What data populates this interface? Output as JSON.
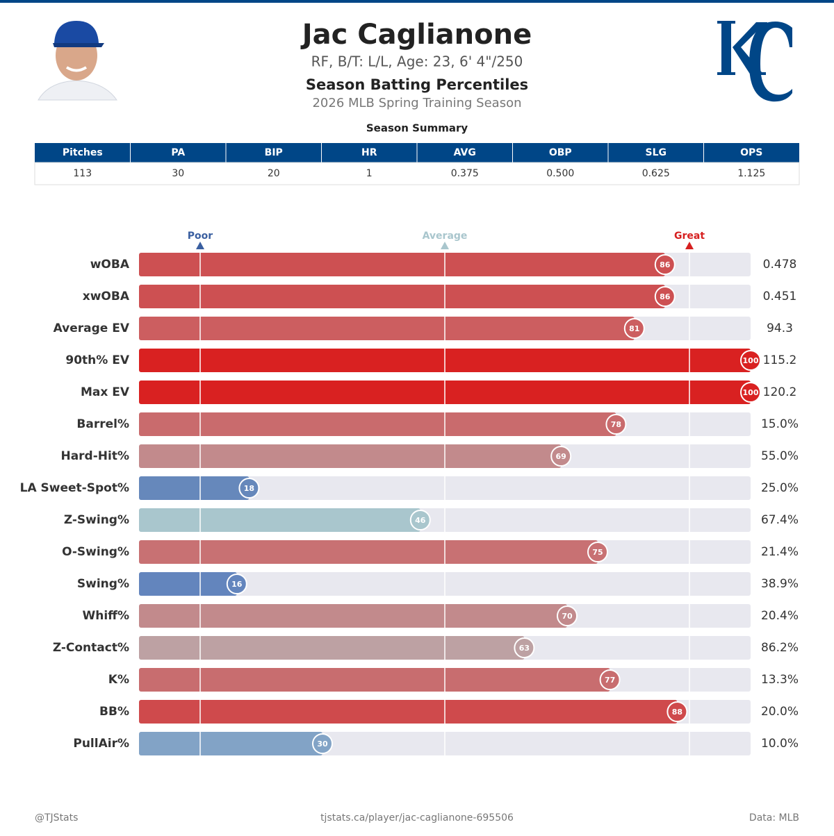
{
  "header": {
    "title": "Jac Caglianone",
    "subtitle": "RF, B/T: L/L, Age: 23, 6' 4\"/250",
    "heading": "Season Batting Percentiles",
    "season": "2026 MLB Spring Training Season"
  },
  "table": {
    "title": "Season Summary",
    "columns": [
      "Pitches",
      "PA",
      "BIP",
      "HR",
      "AVG",
      "OBP",
      "SLG",
      "OPS"
    ],
    "rows": [
      [
        "113",
        "30",
        "20",
        "1",
        "0.375",
        "0.500",
        "0.625",
        "1.125"
      ]
    ]
  },
  "chart_data": {
    "type": "percentile",
    "categories": [
      "wOBA",
      "xwOBA",
      "Average EV",
      "90th% EV",
      "Max EV",
      "Barrel%",
      "Hard-Hit%",
      "LA Sweet-Spot%",
      "Z-Swing%",
      "O-Swing%",
      "Swing%",
      "Whiff%",
      "Z-Contact%",
      "K%",
      "BB%",
      "PullAir%"
    ],
    "values": [
      86,
      86,
      81,
      100,
      100,
      78,
      69,
      18,
      46,
      75,
      16,
      70,
      63,
      77,
      88,
      30
    ],
    "stats": [
      "0.478",
      "0.451",
      "94.3",
      "115.2",
      "120.2",
      "15.0%",
      "55.0%",
      "25.0%",
      "67.4%",
      "21.4%",
      "38.9%",
      "20.4%",
      "86.2%",
      "13.3%",
      "20.0%",
      "10.0%"
    ],
    "colors": [
      "#cd5052",
      "#cd5052",
      "#cc5e60",
      "#d92121",
      "#d92121",
      "#c96b6d",
      "#c28a8c",
      "#6688bb",
      "#a9c6cd",
      "#c87173",
      "#6385bd",
      "#c28a8c",
      "#bda1a3",
      "#c86d6f",
      "#cf4a4c",
      "#82a3c6"
    ],
    "xlim": [
      0,
      100
    ],
    "xticks": [
      {
        "value": 10,
        "label": "Poor"
      },
      {
        "value": 50,
        "label": "Average"
      },
      {
        "value": 90,
        "label": "Great"
      }
    ],
    "tick_colors": [
      "#3a5fa0",
      "#a9c6cd",
      "#d62020"
    ]
  },
  "footer": {
    "left": "@TJStats",
    "center": "tjstats.ca/player/jac-caglianone-695506",
    "right": "Data: MLB"
  }
}
